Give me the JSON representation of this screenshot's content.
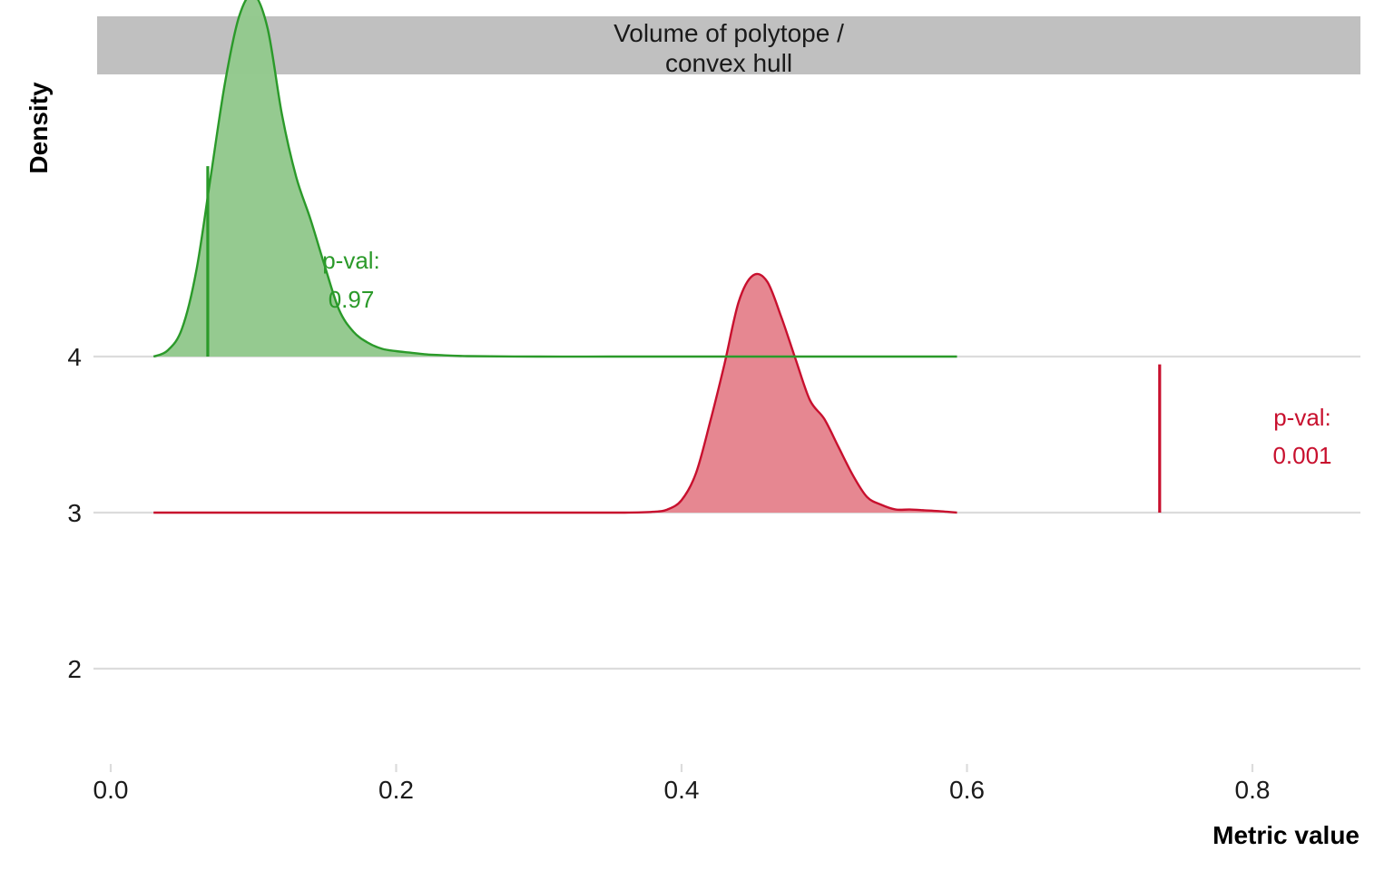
{
  "chart_data": {
    "type": "area",
    "subtype": "ridgeline-density",
    "facet_title": "Volume of polytope /\nconvex hull",
    "xlabel": "Metric value",
    "ylabel": "Density",
    "xlim": [
      -0.01,
      0.875
    ],
    "x_ticks": [
      0.0,
      0.2,
      0.4,
      0.6,
      0.8
    ],
    "x_tick_labels": [
      "0.0",
      "0.2",
      "0.4",
      "0.6",
      "0.8"
    ],
    "y_ticks": [
      2,
      3,
      4
    ],
    "y_tick_labels": [
      "2",
      "3",
      "4"
    ],
    "ylim": [
      1.4,
      5.85
    ],
    "grid": {
      "horizontal": true,
      "vertical": false
    },
    "series": [
      {
        "baseline": 4,
        "color": "#2b9a2a",
        "fill": "#93c98e",
        "x": [
          0.03,
          0.04,
          0.05,
          0.06,
          0.07,
          0.08,
          0.09,
          0.1,
          0.11,
          0.12,
          0.13,
          0.14,
          0.15,
          0.16,
          0.17,
          0.18,
          0.19,
          0.2,
          0.21,
          0.22,
          0.23,
          0.25,
          0.3,
          0.35,
          0.4,
          0.45,
          0.5,
          0.55,
          0.593
        ],
        "density": [
          0.0,
          0.04,
          0.18,
          0.55,
          1.15,
          1.75,
          2.18,
          2.32,
          2.1,
          1.55,
          1.15,
          0.88,
          0.58,
          0.3,
          0.16,
          0.09,
          0.05,
          0.035,
          0.025,
          0.015,
          0.01,
          0.003,
          0.0,
          0.0,
          0.0,
          0.0,
          0.0,
          0.0,
          0.0
        ],
        "observed": 0.068,
        "observed_height": 1.22,
        "p_label": "p-val:",
        "p_value": "0.97"
      },
      {
        "baseline": 3,
        "color": "#c8102e",
        "fill": "#e5858f",
        "x": [
          0.03,
          0.1,
          0.2,
          0.3,
          0.36,
          0.38,
          0.39,
          0.4,
          0.41,
          0.42,
          0.43,
          0.44,
          0.45,
          0.46,
          0.47,
          0.48,
          0.49,
          0.5,
          0.51,
          0.52,
          0.53,
          0.54,
          0.55,
          0.56,
          0.57,
          0.58,
          0.593
        ],
        "density": [
          0.0,
          0.0,
          0.0,
          0.0,
          0.0,
          0.005,
          0.02,
          0.08,
          0.25,
          0.58,
          0.95,
          1.35,
          1.52,
          1.48,
          1.25,
          0.98,
          0.72,
          0.6,
          0.42,
          0.24,
          0.1,
          0.05,
          0.02,
          0.02,
          0.015,
          0.01,
          0.0
        ],
        "observed": 0.735,
        "observed_height": 0.95,
        "p_label": "p-val:",
        "p_value": "0.001"
      }
    ]
  }
}
